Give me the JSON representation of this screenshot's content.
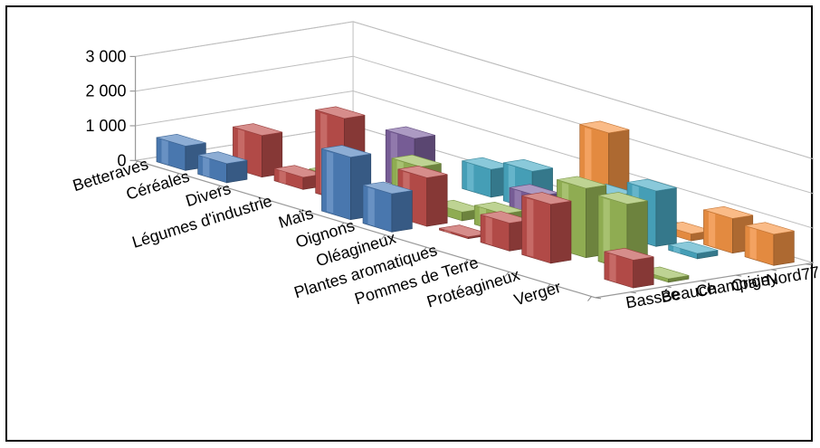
{
  "chart_data": {
    "type": "bar",
    "title": "",
    "xlabel": "",
    "ylabel": "",
    "ylim": [
      0,
      3000
    ],
    "yticks": [
      "0",
      "1 000",
      "2 000",
      "3 000"
    ],
    "categories": [
      "Betteraves",
      "Céréales",
      "Divers",
      "Légumes d'industrie",
      "Maïs",
      "Oignons",
      "Oléagineux",
      "Plantes aromatiques",
      "Pommes de Terre",
      "Protéagineux",
      "Verger"
    ],
    "series": [
      {
        "name": "Bassée",
        "color": "#4F81BD",
        "values": [
          700,
          550,
          0,
          0,
          1800,
          1100,
          0,
          0,
          0,
          0,
          0
        ]
      },
      {
        "name": "Beauce",
        "color": "#C0504D",
        "values": [
          0,
          1200,
          350,
          2400,
          0,
          1400,
          50,
          800,
          1700,
          0,
          800
        ]
      },
      {
        "name": "Champigny",
        "color": "#9BBB59",
        "values": [
          0,
          0,
          180,
          0,
          1200,
          250,
          550,
          80,
          2000,
          1900,
          100
        ]
      },
      {
        "name": "Craie",
        "color": "#8064A2",
        "values": [
          0,
          0,
          0,
          1500,
          0,
          0,
          900,
          0,
          0,
          0,
          0
        ]
      },
      {
        "name": "Nord",
        "color": "#4BACC6",
        "values": [
          0,
          0,
          0,
          0,
          800,
          1100,
          0,
          1100,
          1600,
          150,
          0
        ]
      },
      {
        "name": "77",
        "color": "#F79646",
        "values": [
          0,
          0,
          0,
          0,
          300,
          0,
          2400,
          400,
          200,
          1000,
          900
        ]
      }
    ],
    "depth_labels": [
      "Bassée",
      "Beauce",
      "Champigny",
      "Craie",
      "Nord",
      "77"
    ],
    "grid": true,
    "legend": "none"
  }
}
